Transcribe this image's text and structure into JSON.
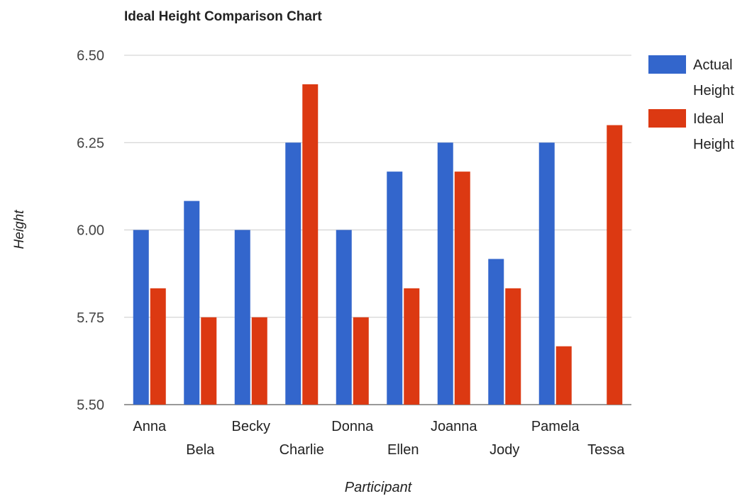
{
  "chart_data": {
    "type": "bar",
    "title": "Ideal Height Comparison Chart",
    "xlabel": "Participant",
    "ylabel": "Height",
    "ylim": [
      5.5,
      6.5
    ],
    "yticks": [
      "5.50",
      "5.75",
      "6.00",
      "6.25",
      "6.50"
    ],
    "grid": true,
    "legend_position": "right",
    "categories": [
      "Anna",
      "Bela",
      "Becky",
      "Charlie",
      "Donna",
      "Ellen",
      "Joanna",
      "Jody",
      "Pamela",
      "Tessa"
    ],
    "series": [
      {
        "name": "Actual Height",
        "legend_lines": [
          "Actual",
          "Height"
        ],
        "color": "#3366cc",
        "values": [
          6.0,
          6.083,
          6.0,
          6.25,
          6.0,
          6.167,
          6.25,
          5.917,
          6.25,
          null
        ]
      },
      {
        "name": "Ideal Height",
        "legend_lines": [
          "Ideal",
          "Height"
        ],
        "color": "#dc3912",
        "values": [
          5.833,
          5.75,
          5.75,
          6.417,
          5.75,
          5.833,
          6.167,
          5.833,
          5.667,
          6.3
        ]
      }
    ]
  }
}
